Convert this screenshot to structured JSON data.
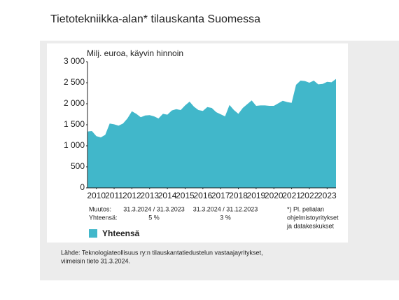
{
  "chart_data": {
    "type": "area",
    "title": "Tietotekniikka-alan* tilauskanta Suomessa",
    "y_label": "Milj. euroa, käyvin hinnoin",
    "x": [
      2010,
      2010.25,
      2010.5,
      2010.75,
      2011,
      2011.25,
      2011.5,
      2011.75,
      2012,
      2012.25,
      2012.5,
      2012.75,
      2013,
      2013.25,
      2013.5,
      2013.75,
      2014,
      2014.25,
      2014.5,
      2014.75,
      2015,
      2015.25,
      2015.5,
      2015.75,
      2016,
      2016.25,
      2016.5,
      2016.75,
      2017,
      2017.25,
      2017.5,
      2017.75,
      2018,
      2018.25,
      2018.5,
      2018.75,
      2019,
      2019.25,
      2019.5,
      2019.75,
      2020,
      2020.25,
      2020.5,
      2020.75,
      2021,
      2021.25,
      2021.5,
      2021.75,
      2022,
      2022.25,
      2022.5,
      2022.75,
      2023,
      2023.25,
      2023.5,
      2023.75,
      2024
    ],
    "series": [
      {
        "name": "Yhteensä",
        "color": "#41b7ca",
        "values": [
          1340,
          1350,
          1230,
          1200,
          1260,
          1530,
          1510,
          1480,
          1530,
          1650,
          1820,
          1760,
          1680,
          1720,
          1730,
          1700,
          1650,
          1760,
          1740,
          1840,
          1870,
          1850,
          1960,
          2050,
          1930,
          1850,
          1830,
          1920,
          1900,
          1800,
          1750,
          1700,
          1970,
          1850,
          1760,
          1900,
          1990,
          2080,
          1950,
          1960,
          1960,
          1950,
          1950,
          2010,
          2070,
          2040,
          2020,
          2450,
          2550,
          2540,
          2500,
          2550,
          2460,
          2470,
          2520,
          2510,
          2590
        ]
      }
    ],
    "xlim": [
      2010,
      2024
    ],
    "xticks": [
      {
        "value": 2010.5,
        "label": "2010"
      },
      {
        "value": 2011.5,
        "label": "2011"
      },
      {
        "value": 2012.5,
        "label": "2012"
      },
      {
        "value": 2013.5,
        "label": "2013"
      },
      {
        "value": 2014.5,
        "label": "2014"
      },
      {
        "value": 2015.5,
        "label": "2015"
      },
      {
        "value": 2016.5,
        "label": "2016"
      },
      {
        "value": 2017.5,
        "label": "2017"
      },
      {
        "value": 2018.5,
        "label": "2018"
      },
      {
        "value": 2019.5,
        "label": "2019"
      },
      {
        "value": 2020.5,
        "label": "2020"
      },
      {
        "value": 2021.5,
        "label": "2021"
      },
      {
        "value": 2022.5,
        "label": "2022"
      },
      {
        "value": 2023.5,
        "label": "2023"
      }
    ],
    "ylim": [
      0,
      3000
    ],
    "yticks": [
      0,
      500,
      {
        "value": 1000,
        "label": "1 000"
      },
      {
        "value": 1500,
        "label": "1 500"
      },
      {
        "value": 2000,
        "label": "2 000"
      },
      {
        "value": 2500,
        "label": "2 500"
      },
      {
        "value": 3000,
        "label": "3 000"
      }
    ],
    "change_table": {
      "rows": [
        [
          "Muutos:",
          "31.3.2024 / 31.3.2023",
          "31.3.2024 / 31.12.2023"
        ],
        [
          "Yhteensä:",
          "5 %",
          "3 %"
        ]
      ]
    },
    "footnote": [
      "*) Pl. pelialan",
      "ohjelmistoyritykset",
      "ja datakeskukset"
    ],
    "source": [
      "Lähde: Teknologiateollisuus ry:n tilauskantatiedustelun vastaajayritykset,",
      "viimeisin tieto 31.3.2024."
    ]
  }
}
